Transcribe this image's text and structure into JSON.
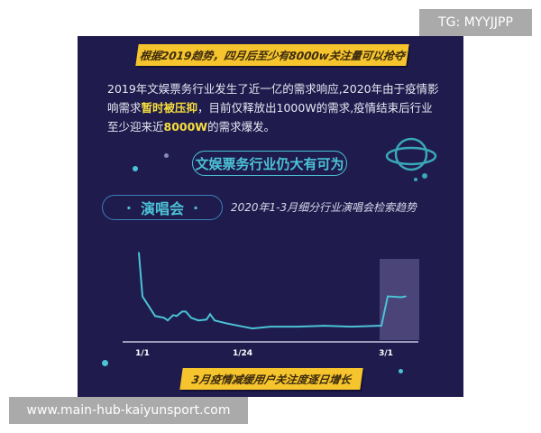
{
  "banner_top": "根据2019趋势，四月后至少有8000w关注量可以抢夺",
  "paragraph": {
    "p1": "2019年文娱票务行业发生了近一亿的需求响应,2020年由于疫情影响需求",
    "h1": "暂时被压抑",
    "p2": "，目前仅释放出1000W的需求,疫情结束后行业至少迎来近",
    "h2": "8000W",
    "p3": "的需求爆发。"
  },
  "pill_main": "文娱票务行业仍大有可为",
  "section_label": "演唱会",
  "section_dot": "·",
  "subtitle": "2020年1-3月细分行业演唱会检索趋势",
  "banner_bottom": "3月疫情减缓用户关注度逐日增长",
  "watermark_top": "TG: MYYJJPP",
  "watermark_bottom": "www.main-hub-kaiyunsport.com",
  "colors": {
    "background": "#1f1b4d",
    "line": "#4cc3d6",
    "banner": "#f6c42c",
    "highlight": "#f7df3c"
  },
  "chart_data": {
    "type": "line",
    "title": "2020年1-3月细分行业演唱会检索趋势",
    "x_tick_labels": [
      "1/1",
      "1/24",
      "3/1"
    ],
    "y_axis": "none (relative search index, unlabeled)",
    "ylim": [
      0,
      100
    ],
    "values": [
      100,
      51,
      29,
      27,
      24,
      30,
      29,
      34,
      34,
      27,
      24,
      25,
      31,
      24,
      21,
      17,
      15,
      17,
      17,
      18,
      17,
      18,
      18,
      51,
      50,
      51
    ],
    "highlight_region": "3/1 onward"
  }
}
